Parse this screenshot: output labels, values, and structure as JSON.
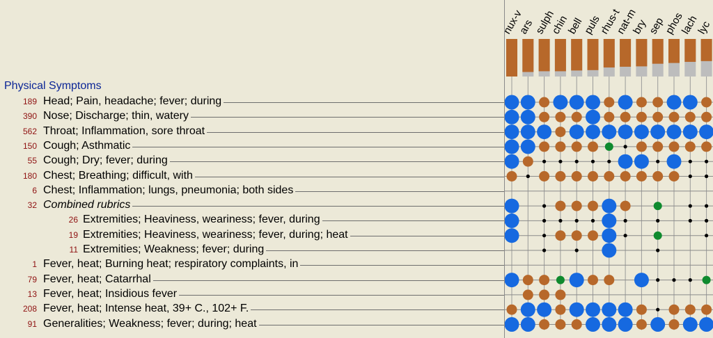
{
  "section_title": "Physical Symptoms",
  "remedies": [
    "nux-v",
    "ars",
    "sulph",
    "chin",
    "bell",
    "puls",
    "rhus-t",
    "nat-m",
    "bry",
    "sep",
    "phos",
    "lach",
    "lyc"
  ],
  "remedy_scores": [
    1.0,
    0.88,
    0.86,
    0.86,
    0.84,
    0.83,
    0.76,
    0.74,
    0.73,
    0.66,
    0.64,
    0.61,
    0.59
  ],
  "colors": {
    "strong": "#1669e0",
    "medium": "#b7682a",
    "weak": "#0f8a2e",
    "dot": "#000000",
    "bar": "#b7682a",
    "bar_bg": "#bdbdbd",
    "count": "#8e1010",
    "section": "#0b2596"
  },
  "rubrics": [
    {
      "count": "189",
      "text": "Head; Pain, headache; fever; during",
      "indent": false,
      "italic": false,
      "grades": [
        3,
        3,
        2,
        3,
        3,
        3,
        2,
        3,
        2,
        2,
        3,
        3,
        2
      ]
    },
    {
      "count": "390",
      "text": "Nose; Discharge; thin, watery",
      "indent": false,
      "italic": false,
      "grades": [
        3,
        3,
        2,
        2,
        2,
        3,
        2,
        2,
        2,
        2,
        2,
        2,
        2
      ]
    },
    {
      "count": "562",
      "text": "Throat; Inflammation, sore throat",
      "indent": false,
      "italic": false,
      "grades": [
        3,
        3,
        3,
        2,
        3,
        3,
        3,
        3,
        3,
        3,
        3,
        3,
        3
      ]
    },
    {
      "count": "150",
      "text": "Cough; Asthmatic",
      "indent": false,
      "italic": false,
      "grades": [
        3,
        3,
        2,
        2,
        2,
        2,
        1,
        4,
        2,
        2,
        2,
        2,
        2
      ]
    },
    {
      "count": "55",
      "text": "Cough; Dry; fever; during",
      "indent": false,
      "italic": false,
      "grades": [
        3,
        2,
        4,
        4,
        4,
        4,
        4,
        3,
        3,
        4,
        3,
        4,
        4
      ]
    },
    {
      "count": "180",
      "text": "Chest; Breathing; difficult, with",
      "indent": false,
      "italic": false,
      "grades": [
        2,
        4,
        2,
        2,
        2,
        2,
        2,
        2,
        2,
        2,
        2,
        4,
        4
      ]
    },
    {
      "count": "6",
      "text": "Chest; Inflammation; lungs, pneumonia; both sides",
      "indent": false,
      "italic": false,
      "grades": [
        0,
        0,
        0,
        0,
        0,
        0,
        0,
        0,
        0,
        0,
        0,
        0,
        0
      ]
    },
    {
      "count": "32",
      "text": "Combined rubrics",
      "indent": false,
      "italic": true,
      "grades": [
        3,
        0,
        4,
        2,
        2,
        2,
        3,
        2,
        0,
        1,
        0,
        4,
        4
      ]
    },
    {
      "count": "26",
      "text": "Extremities; Heaviness, weariness; fever, during",
      "indent": true,
      "italic": false,
      "grades": [
        3,
        0,
        4,
        4,
        4,
        4,
        3,
        4,
        0,
        4,
        0,
        4,
        4
      ]
    },
    {
      "count": "19",
      "text": "Extremities; Heaviness, weariness; fever, during; heat",
      "indent": true,
      "italic": false,
      "grades": [
        3,
        0,
        4,
        2,
        2,
        2,
        3,
        4,
        0,
        1,
        0,
        0,
        4
      ]
    },
    {
      "count": "11",
      "text": "Extremities; Weakness; fever; during",
      "indent": true,
      "italic": false,
      "grades": [
        0,
        0,
        4,
        0,
        4,
        0,
        3,
        0,
        0,
        4,
        0,
        0,
        0
      ]
    },
    {
      "count": "1",
      "text": "Fever, heat; Burning heat; respiratory complaints, in",
      "indent": false,
      "italic": false,
      "grades": [
        0,
        0,
        0,
        0,
        0,
        0,
        0,
        0,
        0,
        0,
        0,
        0,
        0
      ]
    },
    {
      "count": "79",
      "text": "Fever, heat; Catarrhal",
      "indent": false,
      "italic": false,
      "grades": [
        3,
        2,
        2,
        1,
        3,
        2,
        2,
        0,
        3,
        4,
        4,
        4,
        1
      ]
    },
    {
      "count": "13",
      "text": "Fever, heat; Insidious fever",
      "indent": false,
      "italic": false,
      "grades": [
        0,
        2,
        2,
        2,
        0,
        0,
        0,
        0,
        0,
        0,
        0,
        0,
        0
      ]
    },
    {
      "count": "208",
      "text": "Fever, heat; Intense heat, 39+ C., 102+ F.",
      "indent": false,
      "italic": false,
      "grades": [
        2,
        3,
        3,
        2,
        3,
        3,
        3,
        3,
        2,
        4,
        2,
        2,
        2
      ]
    },
    {
      "count": "91",
      "text": "Generalities; Weakness; fever; during; heat",
      "indent": false,
      "italic": false,
      "grades": [
        3,
        3,
        2,
        2,
        2,
        3,
        3,
        3,
        2,
        3,
        2,
        3,
        3
      ]
    }
  ]
}
